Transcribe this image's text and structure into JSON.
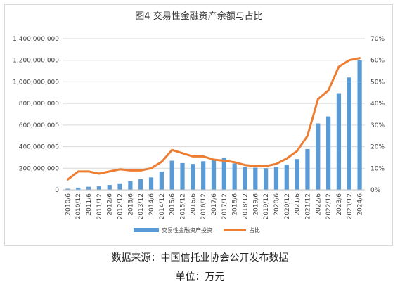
{
  "chart_data": {
    "type": "bar",
    "title": "图4 交易性金融资产余额与占比",
    "categories": [
      "2010/6",
      "2010/12",
      "2011/6",
      "2011/12",
      "2012/6",
      "2012/12",
      "2013/6",
      "2013/12",
      "2014/6",
      "2014/12",
      "2015/6",
      "2015/12",
      "2016/6",
      "2016/12",
      "2017/6",
      "2017/12",
      "2018/6",
      "2018/12",
      "2019/6",
      "2019/12",
      "2020/6",
      "2020/12",
      "2021/6",
      "2021/12",
      "2022/6",
      "2022/12",
      "2023/6",
      "2023/12",
      "2024/6"
    ],
    "series": [
      {
        "name": "交易性金融资产投资",
        "type": "bar",
        "axis": "left",
        "color": "#5b9bd5",
        "values": [
          10000000,
          20000000,
          28000000,
          32000000,
          45000000,
          60000000,
          80000000,
          98000000,
          115000000,
          170000000,
          270000000,
          248000000,
          240000000,
          265000000,
          275000000,
          300000000,
          245000000,
          212000000,
          205000000,
          200000000,
          215000000,
          235000000,
          285000000,
          378000000,
          615000000,
          680000000,
          895000000,
          1040000000,
          1200000000
        ]
      },
      {
        "name": "占比",
        "type": "line",
        "axis": "right",
        "color": "#ed7d31",
        "values": [
          4.8,
          8.5,
          8.5,
          7.5,
          8.5,
          9.5,
          9.0,
          9.0,
          10.0,
          13.0,
          18.5,
          17.0,
          15.5,
          15.5,
          14.0,
          13.5,
          12.8,
          11.5,
          11.0,
          11.0,
          12.0,
          14.5,
          18.0,
          25.0,
          42.0,
          46.0,
          57.0,
          60.0,
          61.0
        ]
      }
    ],
    "yleft": {
      "min": 0,
      "max": 1400000000,
      "ticks": [
        "0",
        "200,000,000",
        "400,000,000",
        "600,000,000",
        "800,000,000",
        "1,000,000,000",
        "1,200,000,000",
        "1,400,000,000"
      ]
    },
    "yright": {
      "min": 0,
      "max": 70,
      "ticks": [
        "0%",
        "10%",
        "20%",
        "30%",
        "40%",
        "50%",
        "60%",
        "70%"
      ]
    },
    "grid": true,
    "legend_position": "bottom"
  },
  "notes": {
    "source": "数据来源：中国信托业协会公开发布数据",
    "unit": "单位：万元"
  }
}
